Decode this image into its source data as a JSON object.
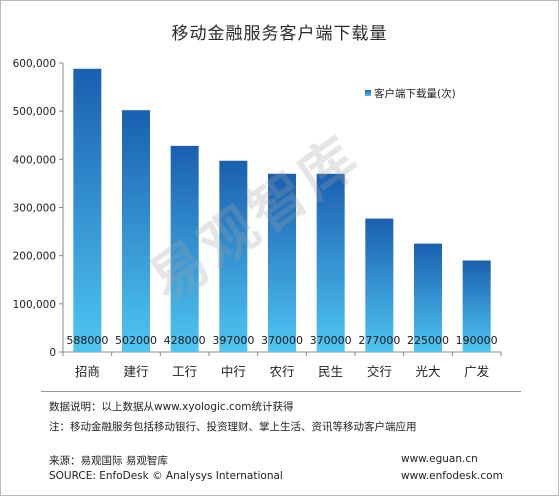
{
  "chart_data": {
    "type": "bar",
    "title": "移动金融服务客户端下载量",
    "categories": [
      "招商",
      "建行",
      "工行",
      "中行",
      "农行",
      "民生",
      "交行",
      "光大",
      "广发"
    ],
    "series": [
      {
        "name": "客户端下载量(次)",
        "values": [
          588000,
          502000,
          428000,
          397000,
          370000,
          370000,
          277000,
          225000,
          190000
        ]
      }
    ],
    "data_labels": [
      "588000",
      "502000",
      "428000",
      "397000",
      "370000",
      "370000",
      "277000",
      "225000",
      "190000"
    ],
    "ylim": [
      0,
      600000
    ],
    "yticks": [
      0,
      100000,
      200000,
      300000,
      400000,
      500000,
      600000
    ],
    "ytick_labels": [
      "0",
      "100,000",
      "200,000",
      "300,000",
      "400,000",
      "500,000",
      "600,000"
    ],
    "xlabel": "",
    "ylabel": "",
    "grid": false,
    "legend_position": "top-right",
    "bar_color_top": "#1a5fb0",
    "bar_color_bottom": "#4fc6f2"
  },
  "watermark": "易观智库",
  "notes": {
    "data_note": "数据说明：以上数据从www.xyologic.com统计获得",
    "definition_note": "注：移动金融服务包括移动银行、投资理财、掌上生活、资讯等移动客户端应用",
    "source_cn": "来源：易观国际 易观智库",
    "source_en": "SOURCE: EnfoDesk © Analysys International",
    "url_1": "www.eguan.cn",
    "url_2": "www.enfodesk.com"
  }
}
